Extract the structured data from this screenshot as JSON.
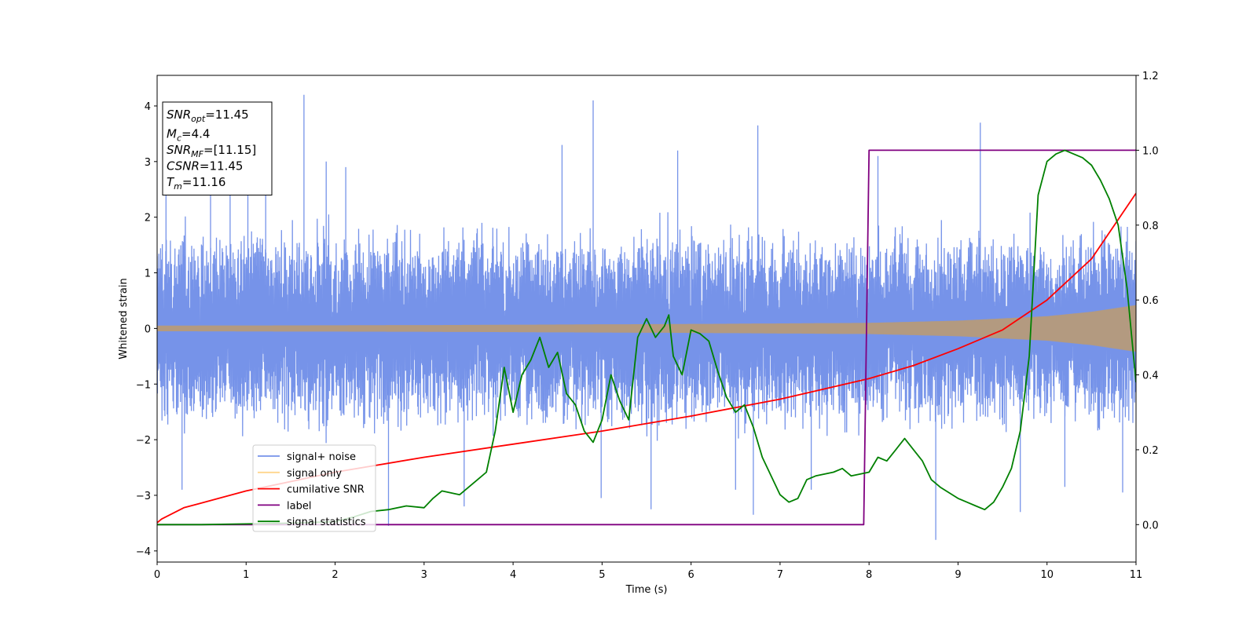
{
  "chart_data": {
    "type": "line",
    "title": "",
    "xlabel": "Time (s)",
    "ylabel": "Whitened strain",
    "xlim": [
      0,
      11
    ],
    "ylim": [
      -4.2,
      4.55
    ],
    "y2lim": [
      -0.1,
      1.2
    ],
    "x_ticks": [
      0,
      1,
      2,
      3,
      4,
      5,
      6,
      7,
      8,
      9,
      10,
      11
    ],
    "y_ticks": [
      -4,
      -3,
      -2,
      -1,
      0,
      1,
      2,
      3,
      4
    ],
    "y2_ticks": [
      "0.0",
      "0.2",
      "0.4",
      "0.6",
      "0.8",
      "1.0",
      "1.2"
    ],
    "grid": false,
    "legend_position": "bottom-left",
    "annotation": {
      "lines": [
        {
          "main": "SNR",
          "sub": "opt",
          "rest": "=11.45"
        },
        {
          "main": "M",
          "sub": "c",
          "rest": "=4.4"
        },
        {
          "main": "SNR",
          "sub": "MF",
          "rest": "=[11.15]"
        },
        {
          "main": "CSNR",
          "sub": "",
          "rest": "=11.45"
        },
        {
          "main": "T",
          "sub": "m",
          "rest": "=11.16"
        }
      ]
    },
    "series": [
      {
        "name": "signal+ noise",
        "axis": "left",
        "color": "#4169e1",
        "kind": "noise",
        "envelope": 1.8,
        "spike_samples": [
          [
            0.1,
            2.4
          ],
          [
            0.28,
            -2.9
          ],
          [
            0.6,
            2.5
          ],
          [
            0.82,
            3.1
          ],
          [
            1.02,
            3.0
          ],
          [
            1.22,
            3.35
          ],
          [
            1.65,
            4.2
          ],
          [
            1.9,
            3.0
          ],
          [
            2.12,
            2.9
          ],
          [
            2.6,
            -3.55
          ],
          [
            3.45,
            -3.2
          ],
          [
            4.55,
            3.3
          ],
          [
            4.9,
            4.1
          ],
          [
            4.99,
            -3.05
          ],
          [
            5.55,
            -3.25
          ],
          [
            5.85,
            3.2
          ],
          [
            6.5,
            -2.9
          ],
          [
            6.7,
            -3.35
          ],
          [
            6.75,
            3.65
          ],
          [
            7.35,
            -2.9
          ],
          [
            8.1,
            3.1
          ],
          [
            8.75,
            -3.8
          ],
          [
            9.25,
            3.7
          ],
          [
            9.7,
            -3.3
          ],
          [
            10.2,
            -2.85
          ],
          [
            10.85,
            -2.95
          ]
        ]
      },
      {
        "name": "signal only",
        "axis": "left",
        "color": "#ffa500",
        "kind": "chirp",
        "amp": [
          [
            0,
            0.05
          ],
          [
            3,
            0.06
          ],
          [
            6,
            0.08
          ],
          [
            8,
            0.1
          ],
          [
            9,
            0.14
          ],
          [
            10,
            0.22
          ],
          [
            10.5,
            0.3
          ],
          [
            11,
            0.42
          ]
        ]
      },
      {
        "name": "cumilative SNR",
        "axis": "right",
        "color": "#ff0000",
        "x": [
          0,
          0.05,
          0.3,
          1,
          2,
          3,
          4,
          5,
          6,
          7,
          8,
          8.5,
          9,
          9.5,
          10,
          10.5,
          11
        ],
        "y": [
          0.005,
          0.015,
          0.045,
          0.09,
          0.14,
          0.18,
          0.215,
          0.25,
          0.29,
          0.335,
          0.39,
          0.425,
          0.47,
          0.52,
          0.6,
          0.71,
          0.885
        ]
      },
      {
        "name": "label",
        "axis": "right",
        "color": "#800080",
        "x": [
          0,
          7.94,
          8.0,
          11
        ],
        "y": [
          0,
          0,
          1,
          1
        ]
      },
      {
        "name": "signal statistics",
        "axis": "right",
        "color": "#008000",
        "x": [
          0,
          0.5,
          1,
          1.5,
          2,
          2.2,
          2.4,
          2.6,
          2.8,
          3.0,
          3.1,
          3.2,
          3.4,
          3.6,
          3.7,
          3.8,
          3.9,
          4.0,
          4.1,
          4.2,
          4.3,
          4.4,
          4.5,
          4.6,
          4.7,
          4.8,
          4.9,
          5.0,
          5.1,
          5.2,
          5.3,
          5.4,
          5.5,
          5.6,
          5.7,
          5.75,
          5.8,
          5.9,
          6.0,
          6.1,
          6.2,
          6.3,
          6.4,
          6.5,
          6.6,
          6.7,
          6.8,
          7.0,
          7.1,
          7.2,
          7.3,
          7.4,
          7.6,
          7.7,
          7.8,
          8.0,
          8.1,
          8.2,
          8.3,
          8.4,
          8.5,
          8.6,
          8.7,
          8.8,
          9.0,
          9.1,
          9.2,
          9.3,
          9.4,
          9.5,
          9.6,
          9.7,
          9.8,
          9.9,
          10.0,
          10.1,
          10.2,
          10.3,
          10.4,
          10.5,
          10.6,
          10.7,
          10.8,
          10.9,
          11.0
        ],
        "y": [
          0.0,
          0.0,
          0.002,
          0.004,
          0.008,
          0.02,
          0.035,
          0.04,
          0.05,
          0.045,
          0.07,
          0.09,
          0.08,
          0.12,
          0.14,
          0.25,
          0.42,
          0.3,
          0.4,
          0.44,
          0.5,
          0.42,
          0.46,
          0.35,
          0.32,
          0.25,
          0.22,
          0.28,
          0.4,
          0.33,
          0.28,
          0.5,
          0.55,
          0.5,
          0.53,
          0.56,
          0.45,
          0.4,
          0.52,
          0.51,
          0.49,
          0.41,
          0.34,
          0.3,
          0.32,
          0.26,
          0.18,
          0.08,
          0.06,
          0.07,
          0.12,
          0.13,
          0.14,
          0.15,
          0.13,
          0.14,
          0.18,
          0.17,
          0.2,
          0.23,
          0.2,
          0.17,
          0.12,
          0.1,
          0.07,
          0.06,
          0.05,
          0.04,
          0.06,
          0.1,
          0.15,
          0.25,
          0.45,
          0.88,
          0.97,
          0.99,
          1.0,
          0.99,
          0.98,
          0.96,
          0.92,
          0.87,
          0.8,
          0.63,
          0.38
        ]
      }
    ]
  }
}
